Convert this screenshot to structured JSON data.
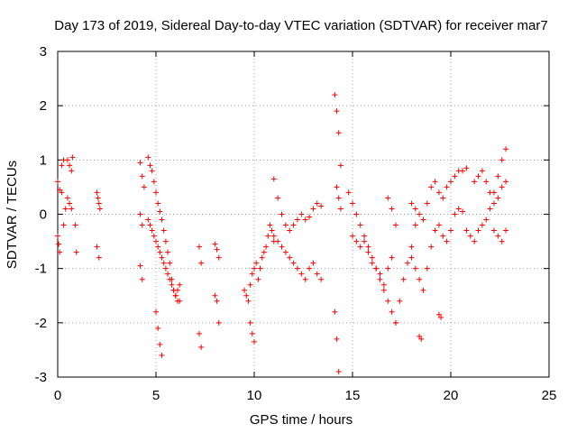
{
  "chart_data": {
    "type": "scatter",
    "title": "Day 173 of 2019, Sidereal Day-to-day VTEC variation (SDTVAR) for receiver mar7",
    "xlabel": "GPS time / hours",
    "ylabel": "SDTVAR / TECUs",
    "xlim": [
      0,
      25
    ],
    "ylim": [
      -3,
      3
    ],
    "xticks": [
      0,
      5,
      10,
      15,
      20,
      25
    ],
    "yticks": [
      -3,
      -2,
      -1,
      0,
      1,
      2,
      3
    ],
    "xtick_labels": [
      "0",
      "5",
      "10",
      "15",
      "20",
      "25"
    ],
    "ytick_labels": [
      "-3",
      "-2",
      "-1",
      "0",
      "1",
      "2",
      "3"
    ],
    "grid": true,
    "marker": "+",
    "series": [
      {
        "name": "SDTVAR",
        "color": "#ff0000",
        "segments": [
          {
            "x": [
              0.0,
              0.1,
              0.2
            ],
            "y": [
              0.6,
              0.45,
              0.4
            ]
          },
          {
            "x": [
              0.0,
              0.05,
              0.1
            ],
            "y": [
              -0.4,
              -0.55,
              -0.7
            ]
          },
          {
            "x": [
              0.2,
              0.3
            ],
            "y": [
              0.9,
              1.0
            ]
          },
          {
            "x": [
              0.3,
              0.4
            ],
            "y": [
              -0.2,
              0.1
            ]
          },
          {
            "x": [
              0.5,
              0.6,
              0.7,
              0.75
            ],
            "y": [
              1.0,
              0.9,
              0.8,
              1.05
            ]
          },
          {
            "x": [
              0.5,
              0.6,
              0.7
            ],
            "y": [
              0.3,
              0.2,
              0.1
            ]
          },
          {
            "x": [
              0.9,
              0.95
            ],
            "y": [
              -0.2,
              -0.7
            ]
          },
          {
            "x": [
              2.0,
              2.05,
              2.1,
              2.15
            ],
            "y": [
              0.4,
              0.3,
              0.2,
              0.1
            ]
          },
          {
            "x": [
              2.0,
              2.1
            ],
            "y": [
              -0.6,
              -0.8
            ]
          },
          {
            "x": [
              4.2,
              4.3,
              4.4
            ],
            "y": [
              0.95,
              0.7,
              0.5
            ]
          },
          {
            "x": [
              4.2,
              4.3
            ],
            "y": [
              0.0,
              -0.2
            ]
          },
          {
            "x": [
              4.2,
              4.3
            ],
            "y": [
              -0.95,
              -1.2
            ]
          },
          {
            "x": [
              4.6,
              4.7,
              4.8,
              4.9,
              5.0,
              5.1,
              5.2,
              5.3,
              5.4,
              5.5,
              5.6,
              5.7,
              5.8,
              5.9,
              6.0,
              6.1,
              6.2
            ],
            "y": [
              1.05,
              0.9,
              0.8,
              0.6,
              0.4,
              0.2,
              0.05,
              -0.1,
              -0.3,
              -0.5,
              -0.7,
              -0.9,
              -1.2,
              -1.4,
              -1.5,
              -1.6,
              -1.6
            ]
          },
          {
            "x": [
              4.6,
              4.7,
              4.8,
              4.9,
              5.0,
              5.1,
              5.2,
              5.3,
              5.4,
              5.5,
              5.6,
              5.7,
              5.8,
              5.9,
              6.0,
              6.1,
              6.2
            ],
            "y": [
              -0.1,
              -0.2,
              -0.3,
              -0.4,
              -0.5,
              -0.6,
              -0.7,
              -0.8,
              -0.9,
              -1.0,
              -1.1,
              -1.2,
              -1.3,
              -1.4,
              -1.5,
              -1.4,
              -1.3
            ]
          },
          {
            "x": [
              5.0,
              5.1,
              5.2,
              5.3
            ],
            "y": [
              -1.8,
              -2.1,
              -2.4,
              -2.6
            ]
          },
          {
            "x": [
              7.2,
              7.3
            ],
            "y": [
              -0.6,
              -0.9
            ]
          },
          {
            "x": [
              7.2,
              7.3
            ],
            "y": [
              -2.2,
              -2.45
            ]
          },
          {
            "x": [
              8.0,
              8.1,
              8.2
            ],
            "y": [
              -0.55,
              -0.65,
              -0.8
            ]
          },
          {
            "x": [
              8.0,
              8.1,
              8.2
            ],
            "y": [
              -1.5,
              -1.6,
              -2.0
            ]
          },
          {
            "x": [
              9.5,
              9.6,
              9.7,
              9.8,
              9.9,
              10.0,
              10.1,
              10.2,
              10.3,
              10.4,
              10.5,
              10.6,
              10.7,
              10.8,
              10.9,
              11.0
            ],
            "y": [
              -1.4,
              -1.5,
              -1.6,
              -1.3,
              -1.1,
              -1.0,
              -0.9,
              -1.2,
              -1.0,
              -0.8,
              -0.7,
              -0.6,
              -0.4,
              -0.2,
              -0.3,
              -0.5
            ]
          },
          {
            "x": [
              9.8,
              9.9,
              10.0
            ],
            "y": [
              -2.0,
              -2.2,
              -2.35
            ]
          },
          {
            "x": [
              11.0,
              11.2,
              11.4,
              11.6,
              11.8,
              12.0,
              12.2,
              12.4,
              12.6,
              12.8,
              13.0,
              13.2,
              13.4
            ],
            "y": [
              0.65,
              0.3,
              0.0,
              -0.2,
              -0.3,
              -0.2,
              -0.1,
              0.0,
              -0.1,
              -0.05,
              0.1,
              0.2,
              0.15
            ]
          },
          {
            "x": [
              11.0,
              11.2,
              11.4,
              11.6,
              11.8,
              12.0,
              12.2,
              12.4,
              12.6,
              12.8,
              13.0,
              13.2,
              13.4
            ],
            "y": [
              -0.4,
              -0.5,
              -0.6,
              -0.7,
              -0.8,
              -0.9,
              -1.0,
              -1.1,
              -1.2,
              -1.0,
              -0.9,
              -1.1,
              -1.2
            ]
          },
          {
            "x": [
              14.1,
              14.2,
              14.3,
              14.4
            ],
            "y": [
              2.2,
              1.9,
              1.5,
              0.9
            ]
          },
          {
            "x": [
              14.2,
              14.3,
              14.4
            ],
            "y": [
              0.5,
              0.3,
              0.1
            ]
          },
          {
            "x": [
              14.1,
              14.2,
              14.3
            ],
            "y": [
              -1.8,
              -2.3,
              -2.9
            ]
          },
          {
            "x": [
              14.8,
              15.0,
              15.2,
              15.4,
              15.6,
              15.8,
              16.0,
              16.2,
              16.4,
              16.6,
              16.8,
              17.0,
              17.2
            ],
            "y": [
              0.4,
              0.2,
              0.0,
              -0.2,
              -0.4,
              -0.6,
              -0.8,
              -1.0,
              -1.2,
              -1.4,
              -1.6,
              -1.8,
              -2.0
            ]
          },
          {
            "x": [
              15.0,
              15.2,
              15.4,
              15.6,
              15.8,
              16.0,
              16.2,
              16.4,
              16.6,
              16.8,
              17.0
            ],
            "y": [
              -0.4,
              -0.5,
              -0.6,
              -0.5,
              -0.7,
              -0.9,
              -1.0,
              -1.1,
              -1.3,
              -1.0,
              -0.8
            ]
          },
          {
            "x": [
              16.8,
              17.0,
              17.2
            ],
            "y": [
              0.3,
              0.1,
              -0.2
            ]
          },
          {
            "x": [
              17.2,
              17.4,
              17.6,
              17.8,
              18.0,
              18.2
            ],
            "y": [
              -2.0,
              -1.6,
              -1.2,
              -0.9,
              -0.6,
              -0.2
            ]
          },
          {
            "x": [
              18.0,
              18.2,
              18.4,
              18.6,
              18.8,
              19.0,
              19.2,
              19.4,
              19.6,
              19.8,
              20.0,
              20.2,
              20.4,
              20.6,
              20.8
            ],
            "y": [
              0.2,
              0.1,
              0.0,
              -0.1,
              0.2,
              0.5,
              0.6,
              0.4,
              0.3,
              0.5,
              0.6,
              0.7,
              0.8,
              0.8,
              0.85
            ]
          },
          {
            "x": [
              18.0,
              18.2,
              18.4,
              18.6,
              18.8,
              19.0,
              19.2,
              19.4,
              19.6,
              19.8,
              20.0,
              20.2,
              20.4,
              20.6
            ],
            "y": [
              -0.8,
              -1.0,
              -1.2,
              -1.4,
              -1.0,
              -0.6,
              -0.3,
              -0.2,
              -0.4,
              -0.5,
              -0.3,
              0.0,
              0.1,
              0.05
            ]
          },
          {
            "x": [
              18.4,
              18.5
            ],
            "y": [
              -2.25,
              -2.3
            ]
          },
          {
            "x": [
              19.4,
              19.5
            ],
            "y": [
              -1.85,
              -1.9
            ]
          },
          {
            "x": [
              20.8,
              21.0,
              21.2,
              21.4,
              21.6,
              21.8,
              22.0,
              22.2,
              22.4,
              22.6,
              22.8
            ],
            "y": [
              -0.3,
              -0.4,
              -0.5,
              -0.3,
              -0.2,
              -0.1,
              0.1,
              0.4,
              0.7,
              1.0,
              1.2
            ]
          },
          {
            "x": [
              21.2,
              21.4,
              21.6,
              21.8,
              22.0,
              22.2,
              22.4,
              22.6,
              22.8
            ],
            "y": [
              0.6,
              0.7,
              0.8,
              0.6,
              0.4,
              0.2,
              0.3,
              0.5,
              0.6
            ]
          },
          {
            "x": [
              22.2,
              22.4,
              22.6,
              22.8
            ],
            "y": [
              -0.3,
              -0.4,
              -0.5,
              -0.3
            ]
          }
        ]
      }
    ]
  }
}
